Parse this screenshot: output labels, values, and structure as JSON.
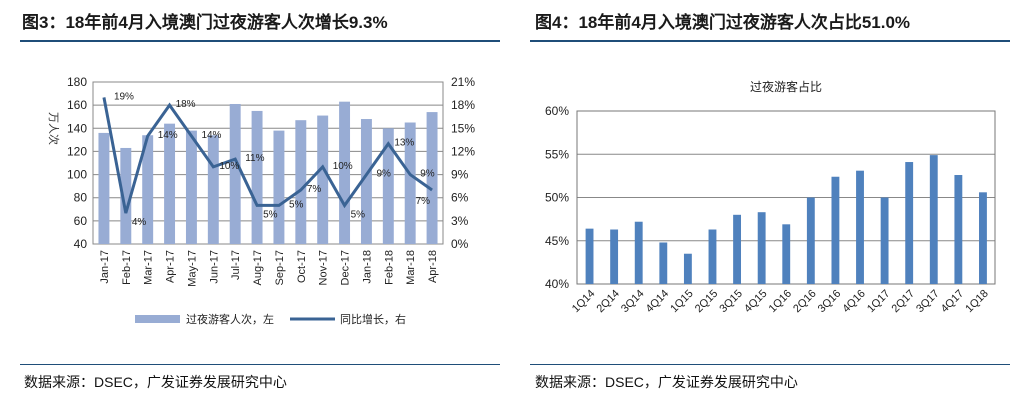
{
  "left": {
    "title": "图3：18年前4月入境澳门过夜游客人次增长9.3%",
    "source": "数据来源：DSEC，广发证券发展研究中心"
  },
  "right": {
    "title": "图4：18年前4月入境澳门过夜游客人次占比51.0%",
    "source": "数据来源：DSEC，广发证券发展研究中心"
  },
  "chart_data": [
    {
      "type": "bar+line",
      "ylabel": "万人次",
      "ylim": [
        40,
        180
      ],
      "yticks": [
        40,
        60,
        80,
        100,
        120,
        140,
        160,
        180
      ],
      "y2lim": [
        0,
        21
      ],
      "y2ticks": [
        "0%",
        "3%",
        "6%",
        "9%",
        "12%",
        "15%",
        "18%",
        "21%"
      ],
      "categories": [
        "Jan-17",
        "Feb-17",
        "Mar-17",
        "Apr-17",
        "May-17",
        "Jun-17",
        "Jul-17",
        "Aug-17",
        "Sep-17",
        "Oct-17",
        "Nov-17",
        "Dec-17",
        "Jan-18",
        "Feb-18",
        "Mar-18",
        "Apr-18"
      ],
      "series": [
        {
          "name": "过夜游客人次，左",
          "type": "bar",
          "color": "#98acd4",
          "values": [
            136,
            123,
            134,
            144,
            138,
            134,
            161,
            155,
            138,
            147,
            151,
            163,
            148,
            140,
            145,
            154
          ]
        },
        {
          "name": "同比增长，右",
          "type": "line",
          "color": "#3a6394",
          "values": [
            19,
            4,
            14,
            18,
            14,
            10,
            11,
            5,
            5,
            7,
            10,
            5,
            9,
            13,
            9,
            7
          ],
          "labels": [
            "19%",
            "4%",
            "14%",
            "18%",
            "14%",
            "10%",
            "11%",
            "5%",
            "5%",
            "7%",
            "10%",
            "5%",
            "9%",
            "13%",
            "9%",
            "7%"
          ]
        }
      ],
      "grid": true,
      "legend": "bottom"
    },
    {
      "type": "bar",
      "title": "过夜游客占比",
      "ylim": [
        40,
        60
      ],
      "yticks": [
        "40%",
        "45%",
        "50%",
        "55%",
        "60%"
      ],
      "categories": [
        "1Q14",
        "2Q14",
        "3Q14",
        "4Q14",
        "1Q15",
        "2Q15",
        "3Q15",
        "4Q15",
        "1Q16",
        "2Q16",
        "3Q16",
        "4Q16",
        "1Q17",
        "2Q17",
        "3Q17",
        "4Q17",
        "1Q18"
      ],
      "values": [
        46.4,
        46.3,
        47.2,
        44.8,
        43.5,
        46.3,
        48.0,
        48.3,
        46.9,
        50.0,
        52.4,
        53.1,
        50.0,
        54.1,
        54.9,
        52.6,
        50.6
      ],
      "color": "#4f81bd",
      "grid": true
    }
  ]
}
